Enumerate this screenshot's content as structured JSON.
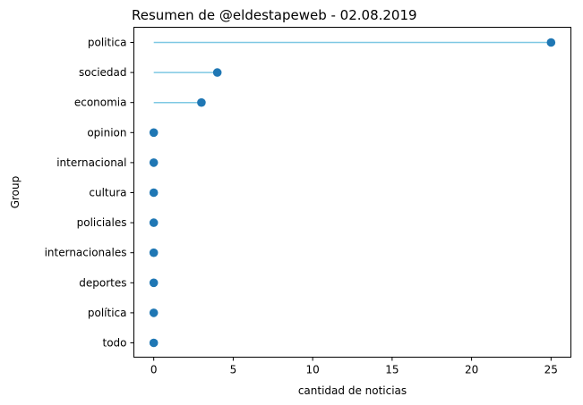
{
  "chart_data": {
    "type": "lollipop",
    "title": "Resumen de @eldestapeweb - 02.08.2019",
    "xlabel": "cantidad de noticias",
    "ylabel": "Group",
    "xlim": [
      -1.25,
      26.25
    ],
    "xticks": [
      0,
      5,
      10,
      15,
      20,
      25
    ],
    "categories": [
      "politica",
      "sociedad",
      "economia",
      "opinion",
      "internacional",
      "cultura",
      "policiales",
      "internacionales",
      "deportes",
      "política",
      "todo"
    ],
    "values": [
      25,
      4,
      3,
      0,
      0,
      0,
      0,
      0,
      0,
      0,
      0
    ],
    "grid": false,
    "colors": {
      "stem": "#7ec8e3",
      "marker": "#1f77b4"
    }
  }
}
